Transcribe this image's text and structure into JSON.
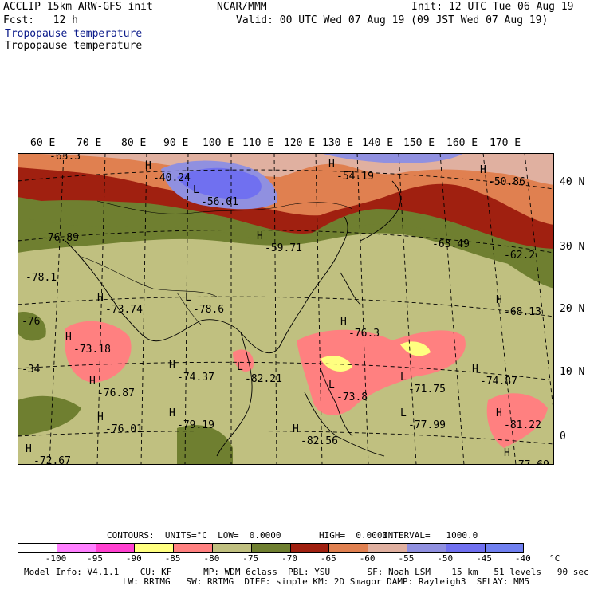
{
  "header": {
    "model": "ACCLIP 15km ARW-GFS init",
    "forecast": "Fcst:   12 h",
    "org": "NCAR/MMM",
    "init": "Init: 12 UTC Tue 06 Aug 19",
    "valid": "Valid: 00 UTC Wed 07 Aug 19 (09 JST Wed 07 Aug 19)",
    "field_title": "Tropopause temperature",
    "field_subtitle": "Tropopause temperature"
  },
  "lon_labels": [
    "60 E",
    "70 E",
    "80 E",
    "90 E",
    "100 E",
    "110 E",
    "120 E",
    "130 E",
    "140 E",
    "150 E",
    "160 E",
    "170 E"
  ],
  "lat_labels": [
    "40 N",
    "30 N",
    "20 N",
    "10 N",
    "0"
  ],
  "extrema": [
    {
      "kind": "",
      "value": "-63.3"
    },
    {
      "kind": "H",
      "value": "-40.24"
    },
    {
      "kind": "L",
      "value": "-56.01"
    },
    {
      "kind": "H",
      "value": "-54.19"
    },
    {
      "kind": "H",
      "value": "-50.86"
    },
    {
      "kind": "",
      "value": "-76.89"
    },
    {
      "kind": "H",
      "value": "-59.71"
    },
    {
      "kind": "",
      "value": "-63.49"
    },
    {
      "kind": "",
      "value": "-62.2"
    },
    {
      "kind": "",
      "value": "-78.1"
    },
    {
      "kind": "H",
      "value": "-73.74"
    },
    {
      "kind": "L",
      "value": "-78.6"
    },
    {
      "kind": "H",
      "value": "-68.13"
    },
    {
      "kind": "",
      "value": "-76"
    },
    {
      "kind": "H",
      "value": "-73.18"
    },
    {
      "kind": "H",
      "value": "-76.3"
    },
    {
      "kind": "H",
      "value": "-74.37"
    },
    {
      "kind": "L",
      "value": "-82.21"
    },
    {
      "kind": "",
      "value": "-34"
    },
    {
      "kind": "H",
      "value": "-76.87"
    },
    {
      "kind": "L",
      "value": "-73.8"
    },
    {
      "kind": "L",
      "value": "-71.75"
    },
    {
      "kind": "H",
      "value": "-74.87"
    },
    {
      "kind": "H",
      "value": "-76.01"
    },
    {
      "kind": "H",
      "value": "-79.19"
    },
    {
      "kind": "L",
      "value": "-77.99"
    },
    {
      "kind": "H",
      "value": "-81.22"
    },
    {
      "kind": "H",
      "value": "-82.56"
    },
    {
      "kind": "H",
      "value": "-72.67"
    },
    {
      "kind": "H",
      "value": "-77.69"
    }
  ],
  "contour_info": {
    "contours": "CONTOURS:  UNITS=°C  LOW=  0.0000",
    "high": "HIGH=  0.0000",
    "interval": "INTERVAL=   1000.0"
  },
  "colorbar": {
    "labels": [
      "-100",
      "-95",
      "-90",
      "-85",
      "-80",
      "-75",
      "-70",
      "-65",
      "-60",
      "-55",
      "-50",
      "-45",
      "-40"
    ],
    "unit": "°C",
    "colors": [
      "#ffffff",
      "#ff80ff",
      "#ff40d0",
      "#ffff80",
      "#ff8080",
      "#c0c080",
      "#6f7f30",
      "#a02010",
      "#e08050",
      "#e0b0a0",
      "#9090e0",
      "#7070f0",
      "#7080f0"
    ]
  },
  "footer": {
    "line1": "Model Info: V4.1.1    CU: KF      MP: WDM 6class  PBL: YSU       SF: Noah LSM    15 km   51 levels   90 sec",
    "line2": "LW: RRTMG   SW: RRTMG  DIFF: simple KM: 2D Smagor DAMP: Rayleigh3  SFLAY: MM5"
  }
}
